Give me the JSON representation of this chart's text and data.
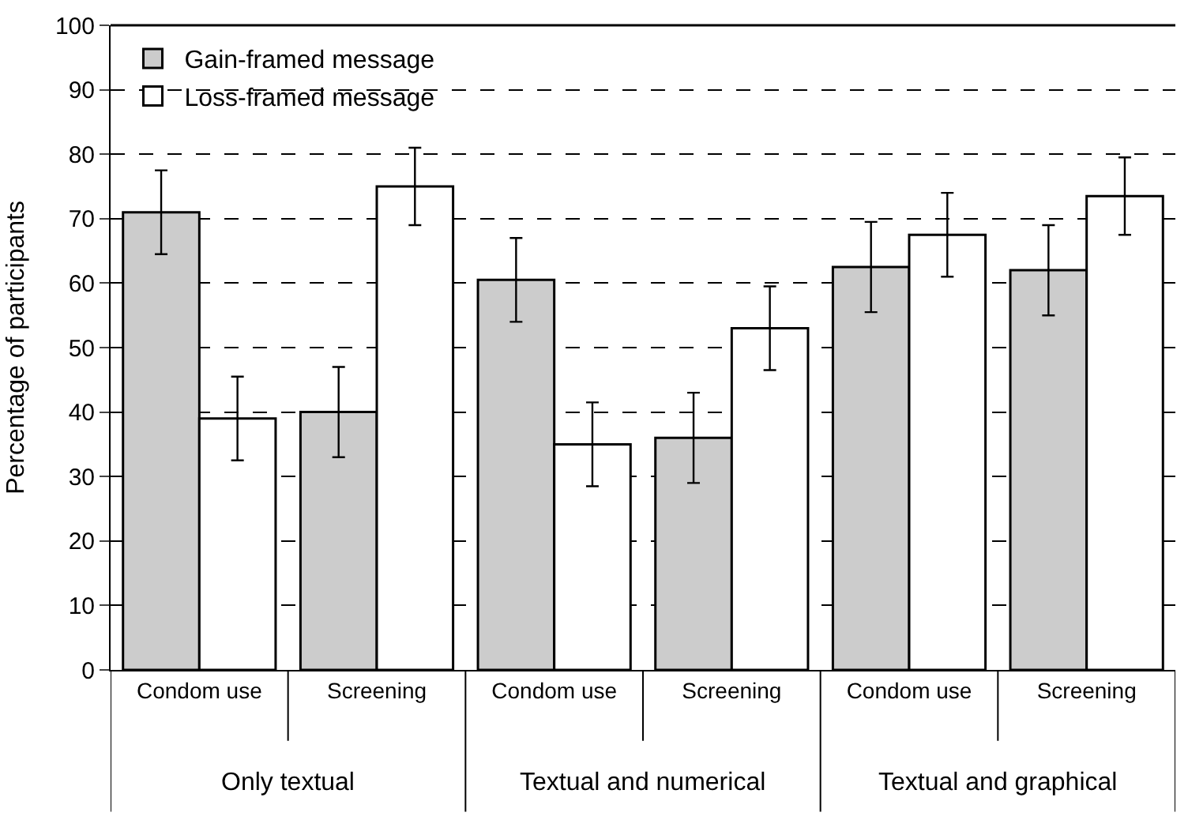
{
  "chart_data": {
    "type": "bar",
    "ylabel": "Percentage of participants",
    "categories": [
      "Condom use",
      "Screening",
      "Condom use",
      "Screening",
      "Condom use",
      "Screening"
    ],
    "series": [
      {
        "name": "Gain-framed message",
        "color": "#cccccc",
        "values": [
          71,
          40,
          60.5,
          36,
          62.5,
          62
        ],
        "errors": [
          6.5,
          7,
          6.5,
          7,
          7,
          7
        ]
      },
      {
        "name": "Loss-framed message",
        "color": "#ffffff",
        "values": [
          39,
          75,
          35,
          53,
          67.5,
          73.5
        ],
        "errors": [
          6.5,
          6,
          6.5,
          6.5,
          6.5,
          6
        ]
      }
    ],
    "annotations": [
      "Only textual",
      "Textual and numerical",
      "Textual and graphical"
    ],
    "ylim": [
      0,
      100
    ],
    "yticks": [
      0,
      10,
      20,
      30,
      40,
      50,
      60,
      70,
      80,
      90,
      100
    ],
    "grid": "y",
    "legend": "top left"
  }
}
